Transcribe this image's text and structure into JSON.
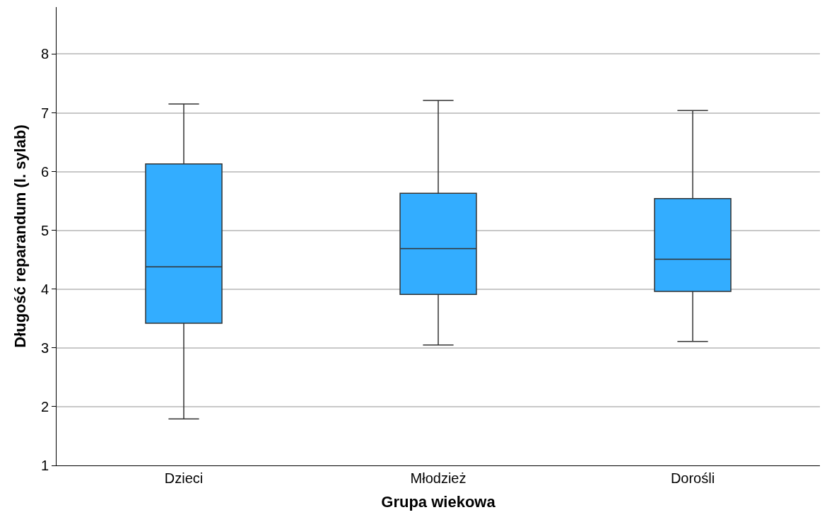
{
  "chart_data": {
    "type": "box",
    "xlabel": "Grupa wiekowa",
    "ylabel": "Długość reparandum (l. sylab)",
    "categories": [
      "Dzieci",
      "Młodzież",
      "Dorośli"
    ],
    "boxes": [
      {
        "low": 1.79,
        "q1": 3.42,
        "median": 4.38,
        "q3": 6.13,
        "high": 7.15
      },
      {
        "low": 3.05,
        "q1": 3.91,
        "median": 4.69,
        "q3": 5.63,
        "high": 7.21
      },
      {
        "low": 3.11,
        "q1": 3.96,
        "median": 4.51,
        "q3": 5.54,
        "high": 7.04
      }
    ],
    "color": "#33adff",
    "ylim": [
      1,
      8.8
    ],
    "yticks": [
      1,
      2,
      3,
      4,
      5,
      6,
      7,
      8
    ],
    "grid": "y"
  }
}
